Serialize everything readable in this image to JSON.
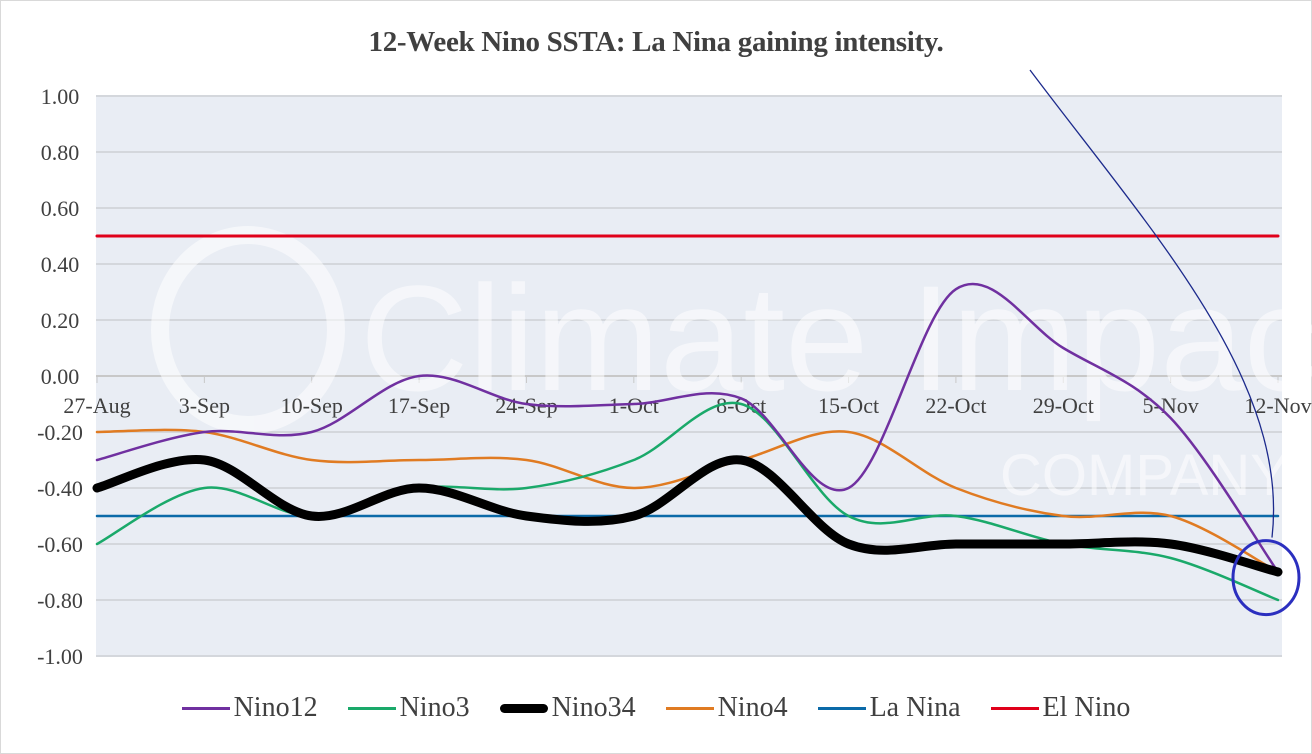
{
  "chart_data": {
    "type": "line",
    "title": "12-Week Nino SSTA: La Nina gaining intensity.",
    "xlabel": "",
    "ylabel": "",
    "categories": [
      "27-Aug",
      "3-Sep",
      "10-Sep",
      "17-Sep",
      "24-Sep",
      "1-Oct",
      "8-Oct",
      "15-Oct",
      "22-Oct",
      "29-Oct",
      "5-Nov",
      "12-Nov"
    ],
    "ylim": [
      -1.0,
      1.0
    ],
    "yticks": [
      "1.00",
      "0.80",
      "0.60",
      "0.40",
      "0.20",
      "0.00",
      "-0.20",
      "-0.40",
      "-0.60",
      "-0.80",
      "-1.00"
    ],
    "grid": true,
    "legend_position": "bottom",
    "series": [
      {
        "name": "Nino12",
        "color": "#7030a0",
        "values": [
          -0.3,
          -0.2,
          -0.2,
          0.0,
          -0.1,
          -0.1,
          -0.08,
          -0.4,
          0.31,
          0.1,
          -0.15,
          -0.7
        ]
      },
      {
        "name": "Nino3",
        "color": "#1aa96a",
        "values": [
          -0.6,
          -0.4,
          -0.5,
          -0.4,
          -0.4,
          -0.3,
          -0.1,
          -0.5,
          -0.5,
          -0.6,
          -0.65,
          -0.8
        ]
      },
      {
        "name": "Nino34",
        "color": "#000000",
        "values": [
          -0.4,
          -0.3,
          -0.5,
          -0.4,
          -0.5,
          -0.5,
          -0.3,
          -0.6,
          -0.6,
          -0.6,
          -0.6,
          -0.7
        ]
      },
      {
        "name": "Nino4",
        "color": "#e07b22",
        "values": [
          -0.2,
          -0.2,
          -0.3,
          -0.3,
          -0.3,
          -0.4,
          -0.3,
          -0.2,
          -0.4,
          -0.5,
          -0.5,
          -0.7
        ]
      },
      {
        "name": "La Nina",
        "color": "#0b6aa8",
        "values": [
          -0.5,
          -0.5,
          -0.5,
          -0.5,
          -0.5,
          -0.5,
          -0.5,
          -0.5,
          -0.5,
          -0.5,
          -0.5,
          -0.5
        ]
      },
      {
        "name": "El Nino",
        "color": "#e0001a",
        "values": [
          0.5,
          0.5,
          0.5,
          0.5,
          0.5,
          0.5,
          0.5,
          0.5,
          0.5,
          0.5,
          0.5,
          0.5
        ]
      }
    ],
    "annotations": [
      {
        "type": "arrow",
        "text": "",
        "from": "title",
        "to": "12-Nov"
      },
      {
        "type": "circle",
        "text": "",
        "at": "12-Nov",
        "value": -0.72
      }
    ],
    "watermark": "Climate Impact COMPANY"
  }
}
